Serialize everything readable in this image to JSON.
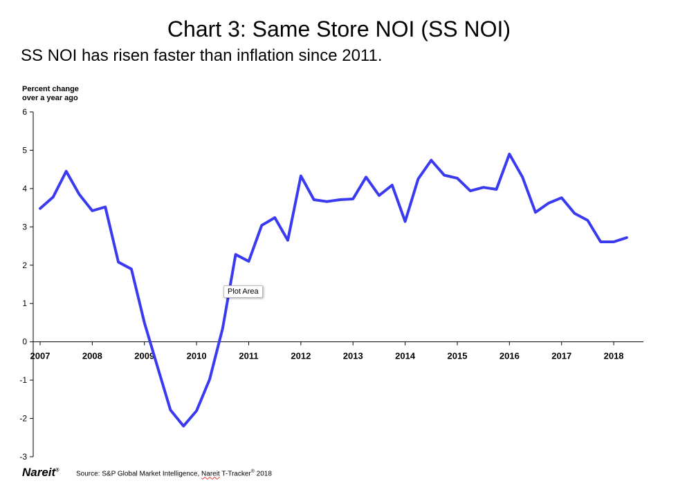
{
  "title": "Chart 3: Same Store NOI (SS NOI)",
  "subtitle": "SS NOI has risen faster than inflation since 2011.",
  "tooltip": "Plot Area",
  "logo": "Nareit",
  "logo_mark": "®",
  "source": {
    "prefix": "Source: S&P Global Market Intelligence, ",
    "brand": "Nareit",
    "product": " T-Tracker",
    "mark": "®",
    "year": " 2018"
  },
  "colors": {
    "line": "#3a3af0",
    "axis": "#000000"
  },
  "chart_data": {
    "type": "line",
    "ylabel": "Percent change over a year ago",
    "ylabel_lines": [
      "Percent change",
      "over a year ago"
    ],
    "ylim": [
      -3,
      6
    ],
    "yticks": [
      6,
      5,
      4,
      3,
      2,
      1,
      0,
      -1,
      -2,
      -3
    ],
    "xlim": [
      2007.0,
      2018.45
    ],
    "xticks": [
      2007,
      2008,
      2009,
      2010,
      2011,
      2012,
      2013,
      2014,
      2015,
      2016,
      2017,
      2018
    ],
    "grid": false,
    "series": [
      {
        "x": [
          2007.0,
          2007.25,
          2007.5,
          2007.75,
          2008.0,
          2008.25,
          2008.5,
          2008.75,
          2009.0,
          2009.25,
          2009.5,
          2009.75,
          2010.0,
          2010.25,
          2010.5,
          2010.75,
          2011.0,
          2011.25,
          2011.5,
          2011.75,
          2012.0,
          2012.25,
          2012.5,
          2012.75,
          2013.0,
          2013.25,
          2013.5,
          2013.75,
          2014.0,
          2014.25,
          2014.5,
          2014.75,
          2015.0,
          2015.25,
          2015.5,
          2015.75,
          2016.0,
          2016.25,
          2016.5,
          2016.75,
          2017.0,
          2017.25,
          2017.5,
          2017.75,
          2018.0,
          2018.25
        ],
        "values": [
          3.48,
          3.78,
          4.45,
          3.85,
          3.42,
          3.52,
          2.08,
          1.9,
          0.5,
          -0.65,
          -1.78,
          -2.2,
          -1.8,
          -0.98,
          0.35,
          2.28,
          2.1,
          3.04,
          3.24,
          2.65,
          4.33,
          3.71,
          3.66,
          3.71,
          3.73,
          4.3,
          3.82,
          4.09,
          3.14,
          4.25,
          4.74,
          4.35,
          4.27,
          3.94,
          4.03,
          3.98,
          4.9,
          4.3,
          3.38,
          3.62,
          3.76,
          3.35,
          3.17,
          2.61,
          2.61,
          2.72
        ]
      }
    ]
  }
}
